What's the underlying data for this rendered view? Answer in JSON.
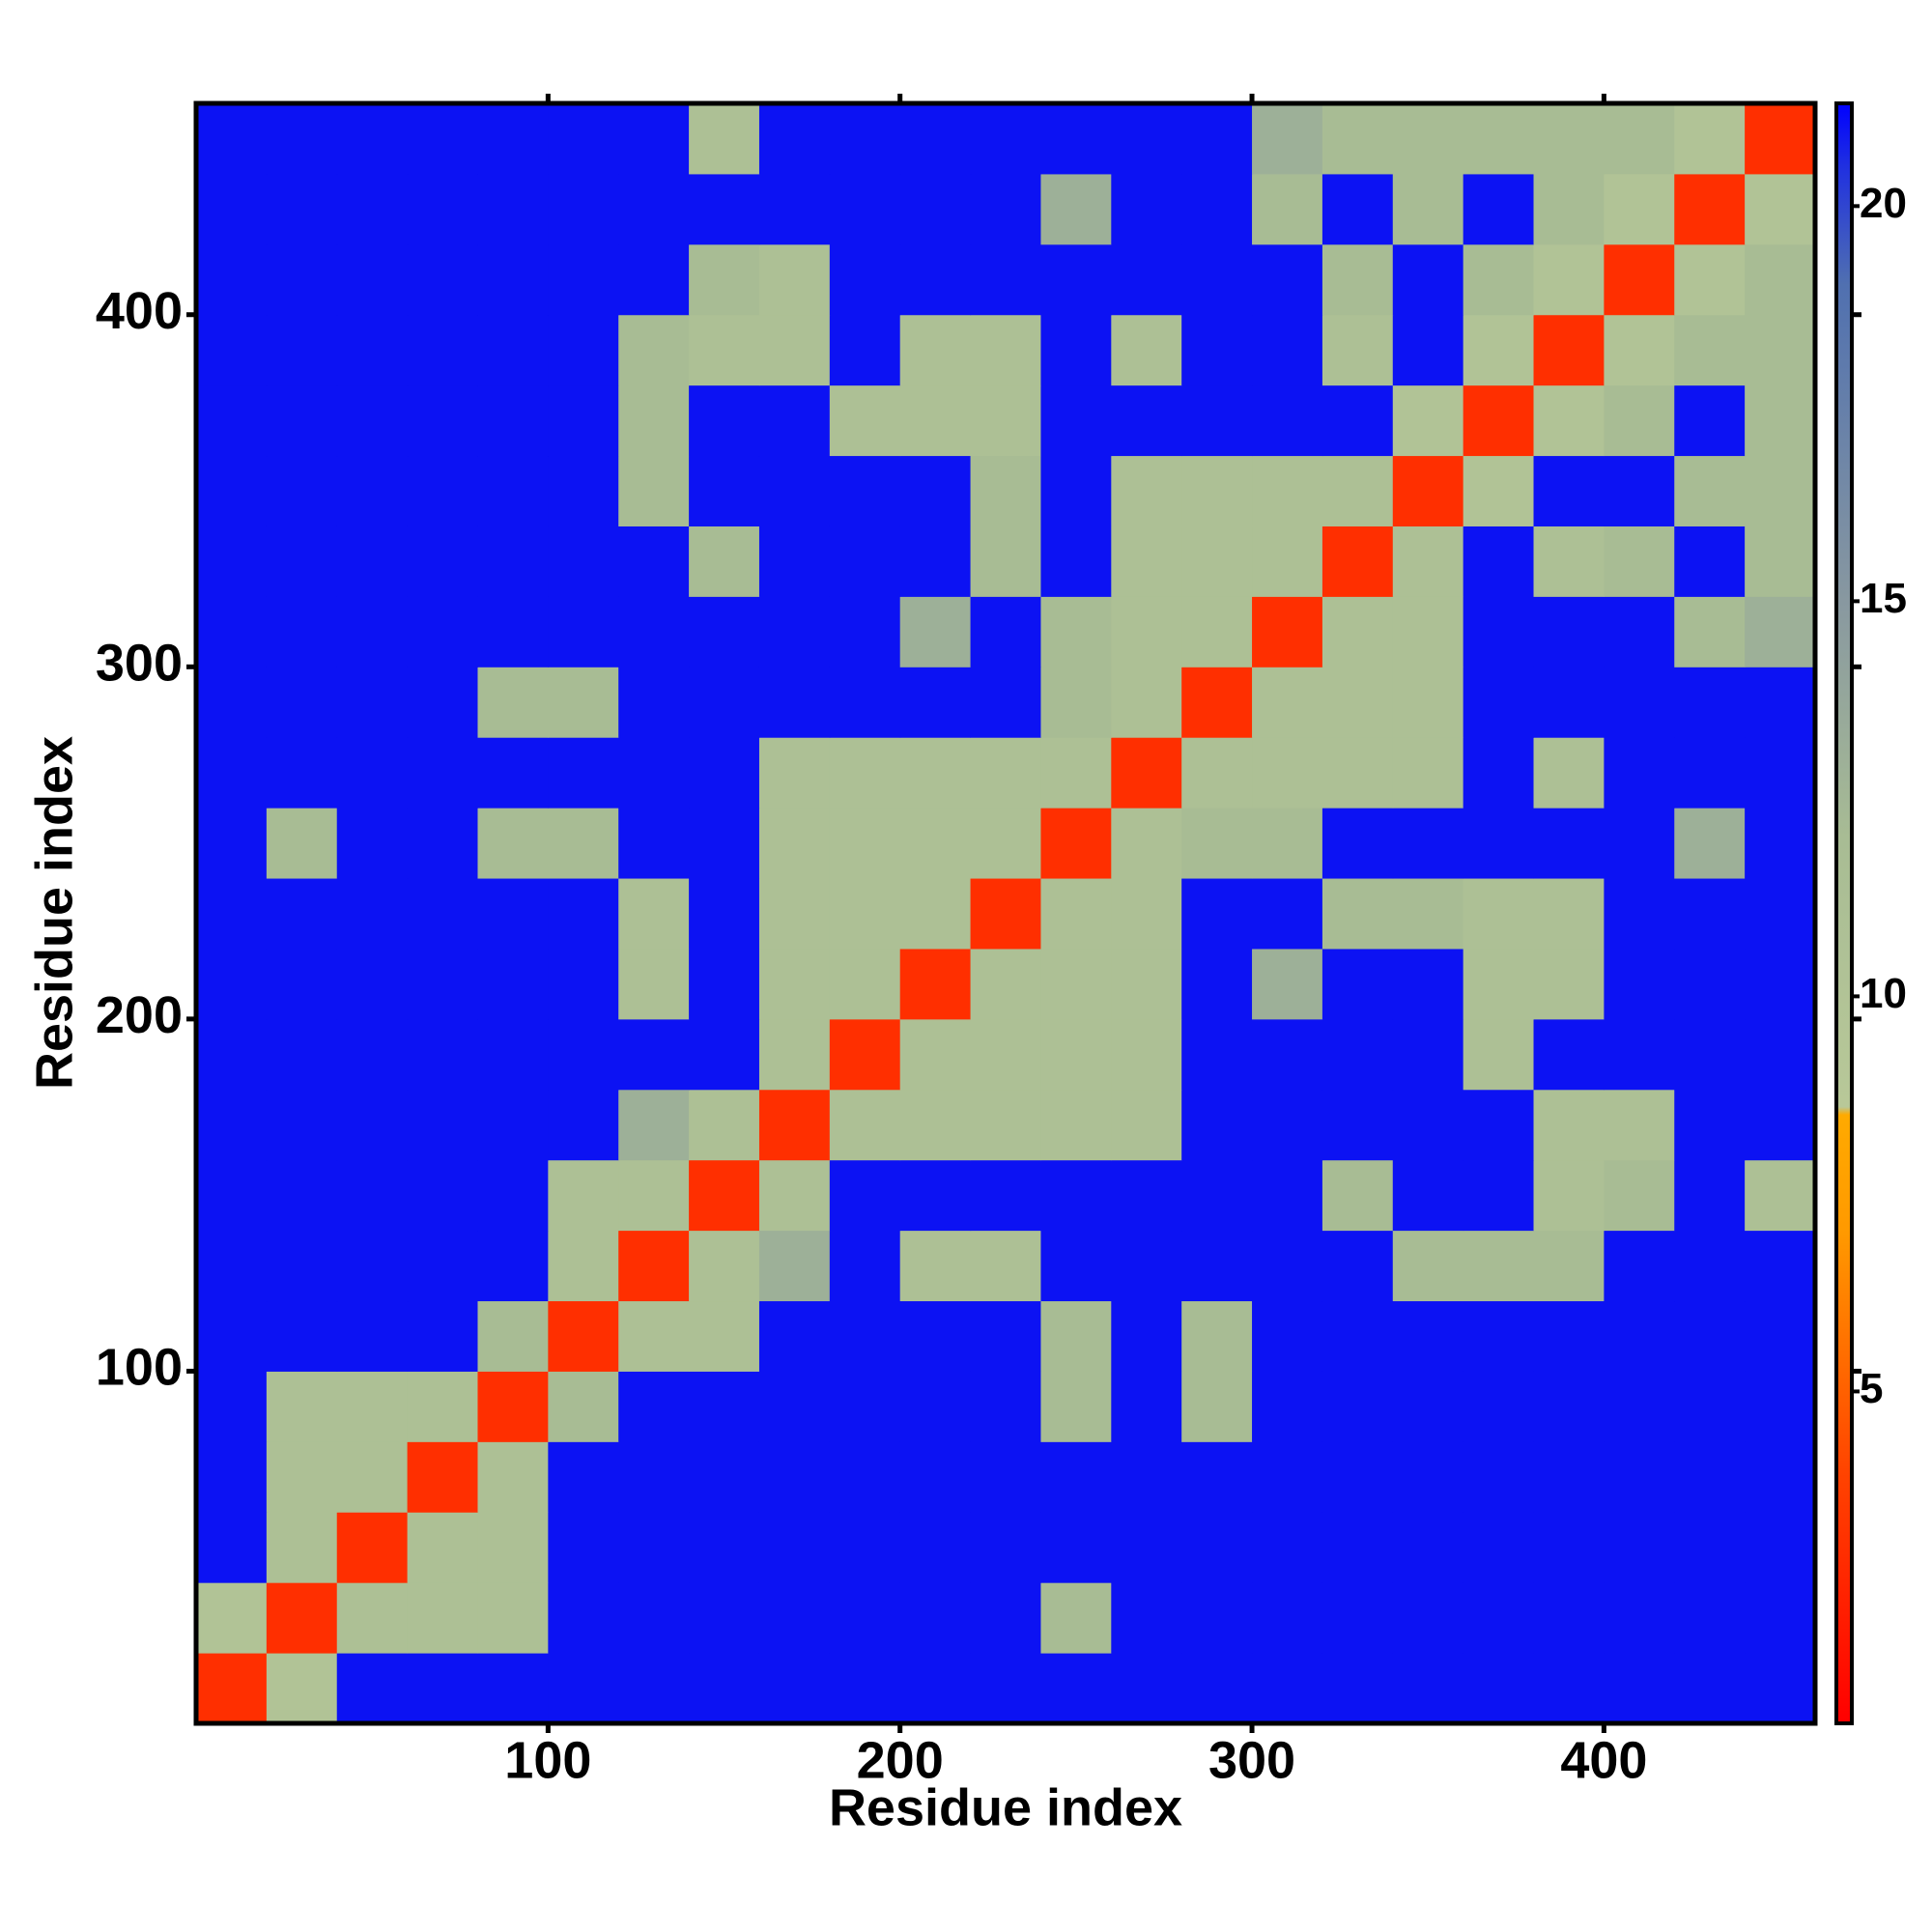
{
  "chart_data": {
    "type": "heatmap",
    "xlabel": "Residue index",
    "ylabel": "Residue index",
    "xlim": [
      0,
      460
    ],
    "ylim": [
      0,
      460
    ],
    "xticks": [
      100,
      200,
      300,
      400
    ],
    "yticks": [
      100,
      200,
      300,
      400
    ],
    "xbins": [
      0,
      20,
      40,
      60,
      80,
      100,
      120,
      140,
      160,
      180,
      200,
      220,
      240,
      260,
      280,
      300,
      320,
      340,
      360,
      380,
      400,
      420,
      440,
      460
    ],
    "ybins": [
      0,
      20,
      40,
      60,
      80,
      100,
      120,
      140,
      160,
      180,
      200,
      220,
      240,
      260,
      280,
      300,
      320,
      340,
      360,
      380,
      400,
      420,
      440,
      460
    ],
    "zlim": [
      0.8,
      21.3
    ],
    "zticks": [
      5,
      10,
      15,
      20
    ],
    "colorscale": [
      [
        0.8,
        "#ff0000"
      ],
      [
        4,
        "#ff4400"
      ],
      [
        7,
        "#ff9900"
      ],
      [
        8.5,
        "#ffaa00"
      ],
      [
        8.6,
        "#b8c898"
      ],
      [
        12,
        "#a8bc94"
      ],
      [
        15,
        "#8898a0"
      ],
      [
        19,
        "#5070b0"
      ],
      [
        20.5,
        "#2030e0"
      ],
      [
        21.3,
        "#0000ff"
      ]
    ],
    "z": [
      [
        3,
        10,
        21,
        21,
        21,
        21,
        21,
        21,
        21,
        21,
        21,
        21,
        21,
        21,
        21,
        21,
        21,
        21,
        21,
        21,
        21,
        21,
        21
      ],
      [
        10,
        3,
        11,
        11,
        11,
        21,
        21,
        21,
        21,
        21,
        21,
        21,
        12,
        21,
        21,
        21,
        21,
        21,
        21,
        21,
        21,
        21,
        21
      ],
      [
        21,
        11,
        3,
        11,
        11,
        21,
        21,
        21,
        21,
        21,
        21,
        21,
        21,
        21,
        21,
        21,
        21,
        21,
        21,
        21,
        21,
        21,
        21
      ],
      [
        21,
        11,
        11,
        3,
        11,
        21,
        21,
        21,
        21,
        21,
        21,
        21,
        21,
        21,
        21,
        21,
        21,
        21,
        21,
        21,
        21,
        21,
        21
      ],
      [
        21,
        11,
        11,
        11,
        3,
        12,
        21,
        21,
        21,
        21,
        21,
        21,
        12,
        21,
        12,
        21,
        21,
        21,
        21,
        21,
        21,
        21,
        21
      ],
      [
        21,
        21,
        21,
        21,
        12,
        3,
        11,
        11,
        21,
        21,
        21,
        21,
        12,
        21,
        12,
        21,
        21,
        21,
        21,
        21,
        21,
        21,
        21
      ],
      [
        21,
        21,
        21,
        21,
        21,
        11,
        3,
        11,
        13,
        21,
        11,
        11,
        21,
        21,
        21,
        21,
        21,
        12,
        12,
        12,
        21,
        21,
        21
      ],
      [
        21,
        21,
        21,
        21,
        21,
        11,
        11,
        3,
        11,
        21,
        21,
        21,
        21,
        21,
        21,
        21,
        12,
        21,
        21,
        11,
        12,
        21,
        11
      ],
      [
        21,
        21,
        21,
        21,
        21,
        21,
        13,
        11,
        3,
        11,
        11,
        11,
        11,
        11,
        21,
        21,
        21,
        21,
        21,
        11,
        11,
        21,
        21
      ],
      [
        21,
        21,
        21,
        21,
        21,
        21,
        21,
        21,
        11,
        3,
        11,
        11,
        11,
        11,
        21,
        21,
        21,
        21,
        11,
        21,
        21,
        21,
        21
      ],
      [
        21,
        21,
        21,
        21,
        21,
        21,
        11,
        21,
        11,
        11,
        3,
        11,
        11,
        11,
        21,
        13,
        21,
        21,
        11,
        11,
        21,
        21,
        21
      ],
      [
        21,
        21,
        21,
        21,
        21,
        21,
        11,
        21,
        11,
        11,
        11,
        3,
        11,
        11,
        21,
        21,
        12,
        12,
        11,
        11,
        21,
        21,
        21
      ],
      [
        21,
        12,
        21,
        21,
        12,
        12,
        21,
        21,
        11,
        11,
        11,
        11,
        3,
        11,
        12,
        12,
        21,
        21,
        21,
        21,
        21,
        13,
        21
      ],
      [
        21,
        21,
        21,
        21,
        21,
        21,
        21,
        21,
        11,
        11,
        11,
        11,
        11,
        3,
        11,
        11,
        11,
        11,
        21,
        11,
        21,
        21,
        21
      ],
      [
        21,
        21,
        21,
        21,
        12,
        12,
        21,
        21,
        21,
        21,
        21,
        21,
        12,
        11,
        3,
        11,
        11,
        11,
        21,
        21,
        21,
        21,
        21
      ],
      [
        21,
        21,
        21,
        21,
        21,
        21,
        21,
        21,
        21,
        21,
        13,
        21,
        12,
        11,
        11,
        3,
        11,
        11,
        21,
        21,
        21,
        12,
        13
      ],
      [
        21,
        21,
        21,
        21,
        21,
        21,
        21,
        12,
        21,
        21,
        21,
        12,
        21,
        11,
        11,
        11,
        3,
        11,
        21,
        11,
        12,
        21,
        12
      ],
      [
        21,
        21,
        21,
        21,
        21,
        21,
        12,
        21,
        21,
        21,
        21,
        12,
        21,
        11,
        11,
        11,
        11,
        3,
        10,
        21,
        21,
        12,
        12
      ],
      [
        21,
        21,
        21,
        21,
        21,
        21,
        12,
        21,
        21,
        11,
        11,
        11,
        21,
        21,
        21,
        21,
        21,
        10,
        3,
        10,
        12,
        21,
        12
      ],
      [
        21,
        21,
        21,
        21,
        21,
        21,
        12,
        11,
        11,
        21,
        11,
        11,
        21,
        11,
        21,
        21,
        11,
        21,
        10,
        3,
        10,
        12,
        12
      ],
      [
        21,
        21,
        21,
        21,
        21,
        21,
        21,
        12,
        11,
        21,
        21,
        21,
        21,
        21,
        21,
        21,
        12,
        21,
        12,
        10,
        3,
        10,
        12
      ],
      [
        21,
        21,
        21,
        21,
        21,
        21,
        21,
        21,
        21,
        21,
        21,
        21,
        13,
        21,
        21,
        12,
        21,
        12,
        21,
        12,
        10,
        3,
        10
      ],
      [
        21,
        21,
        21,
        21,
        21,
        21,
        21,
        11,
        21,
        21,
        21,
        21,
        21,
        21,
        21,
        13,
        12,
        12,
        12,
        12,
        12,
        10,
        3
      ]
    ]
  }
}
